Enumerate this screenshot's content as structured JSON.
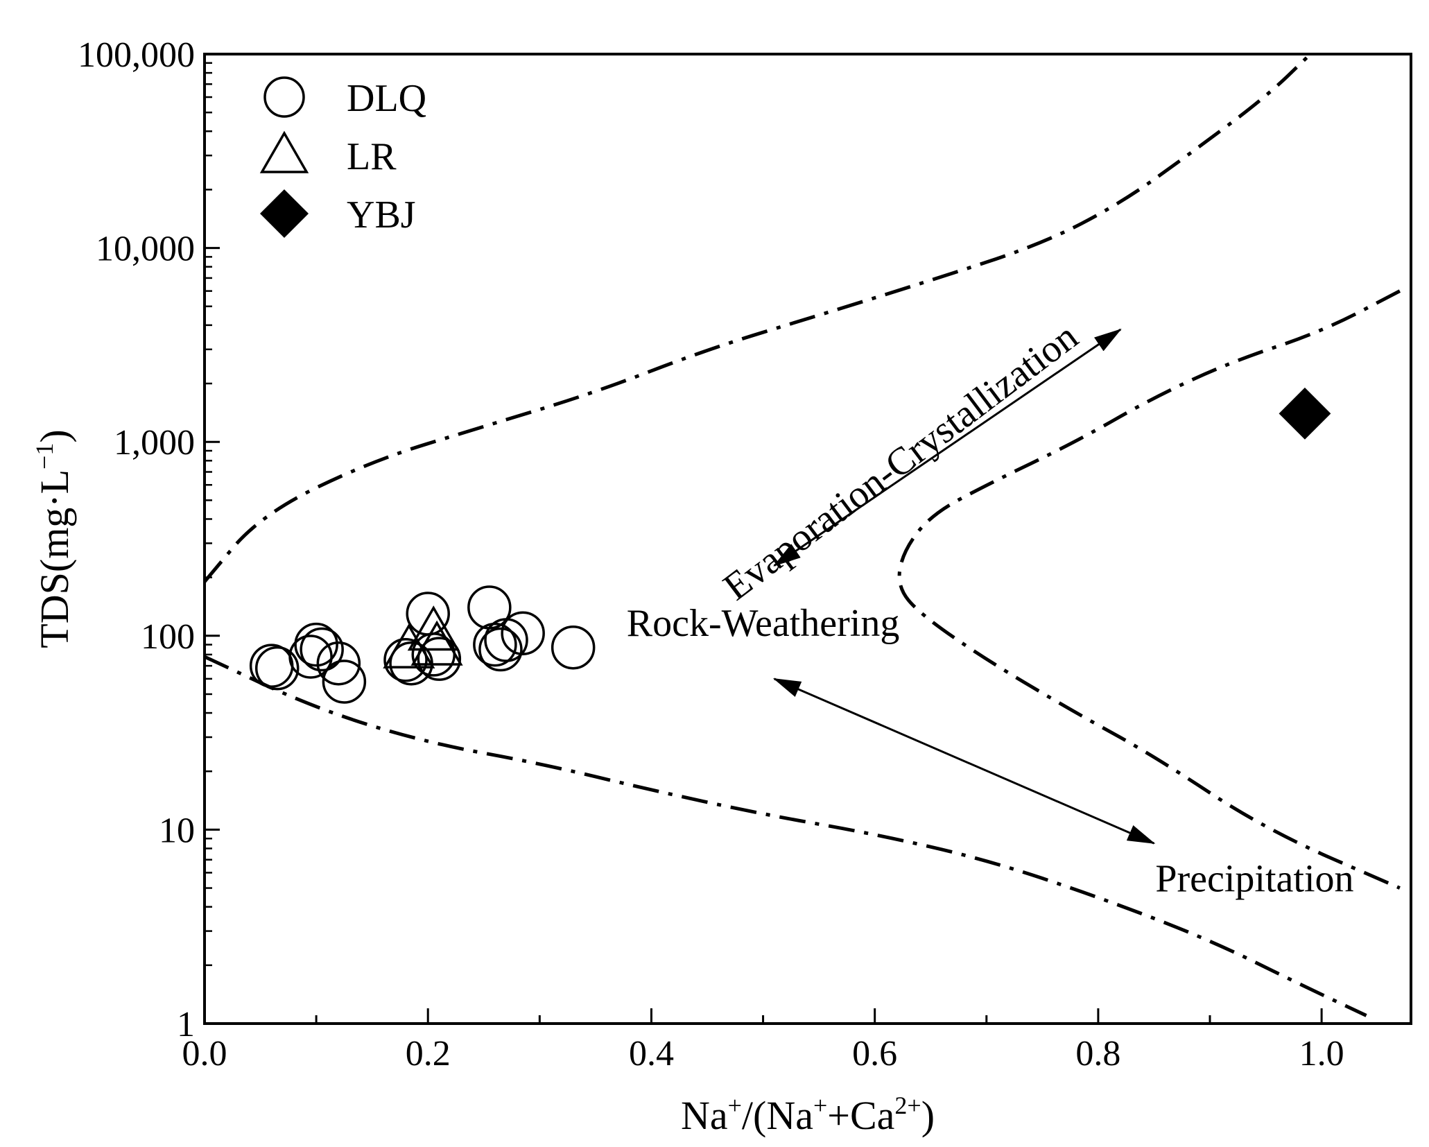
{
  "chart_data": {
    "type": "scatter",
    "title": "",
    "xlabel": {
      "base1": "Na",
      "sup1": "+",
      "mid": "/(Na",
      "sup2": "+",
      "mid2": "+Ca",
      "sup3": "2+",
      "end": ")"
    },
    "ylabel": {
      "base": "TDS(mg·L",
      "sup": "−1",
      "end": ")"
    },
    "xlim": [
      0.0,
      1.08
    ],
    "ylim": [
      1,
      100000
    ],
    "yscale": "log",
    "x_ticks": [
      {
        "value": 0.0,
        "label": "0.0"
      },
      {
        "value": 0.2,
        "label": "0.2"
      },
      {
        "value": 0.4,
        "label": "0.4"
      },
      {
        "value": 0.6,
        "label": "0.6"
      },
      {
        "value": 0.8,
        "label": "0.8"
      },
      {
        "value": 1.0,
        "label": "1.0"
      }
    ],
    "x_minor_ticks": [
      0.1,
      0.3,
      0.5,
      0.7,
      0.9
    ],
    "y_ticks": [
      {
        "value": 1,
        "label": "1"
      },
      {
        "value": 10,
        "label": "10"
      },
      {
        "value": 100,
        "label": "100"
      },
      {
        "value": 1000,
        "label": "1,000"
      },
      {
        "value": 10000,
        "label": "10,000"
      },
      {
        "value": 100000,
        "label": "100,000"
      }
    ],
    "legend": {
      "position": "top-left",
      "entries": [
        {
          "name": "DLQ",
          "marker": "circle-open"
        },
        {
          "name": "LR",
          "marker": "triangle-open"
        },
        {
          "name": "YBJ",
          "marker": "diamond-filled"
        }
      ]
    },
    "series": [
      {
        "name": "DLQ",
        "marker": "circle-open",
        "points": [
          {
            "x": 0.06,
            "y": 70
          },
          {
            "x": 0.065,
            "y": 68
          },
          {
            "x": 0.1,
            "y": 90
          },
          {
            "x": 0.105,
            "y": 85
          },
          {
            "x": 0.095,
            "y": 78
          },
          {
            "x": 0.12,
            "y": 72
          },
          {
            "x": 0.125,
            "y": 58
          },
          {
            "x": 0.18,
            "y": 75
          },
          {
            "x": 0.185,
            "y": 72
          },
          {
            "x": 0.2,
            "y": 130
          },
          {
            "x": 0.205,
            "y": 80
          },
          {
            "x": 0.21,
            "y": 76
          },
          {
            "x": 0.255,
            "y": 140
          },
          {
            "x": 0.26,
            "y": 90
          },
          {
            "x": 0.265,
            "y": 85
          },
          {
            "x": 0.27,
            "y": 95
          },
          {
            "x": 0.285,
            "y": 103
          },
          {
            "x": 0.33,
            "y": 87
          }
        ]
      },
      {
        "name": "LR",
        "marker": "triangle-open",
        "points": [
          {
            "x": 0.183,
            "y": 85
          },
          {
            "x": 0.205,
            "y": 105
          },
          {
            "x": 0.208,
            "y": 88
          }
        ]
      },
      {
        "name": "YBJ",
        "marker": "diamond-filled",
        "points": [
          {
            "x": 0.985,
            "y": 1400
          }
        ]
      }
    ],
    "boundary_lines": [
      {
        "name": "upper-envelope",
        "style": "dash-dot",
        "points": [
          [
            0.0,
            190
          ],
          [
            0.05,
            420
          ],
          [
            0.15,
            800
          ],
          [
            0.25,
            1200
          ],
          [
            0.35,
            1800
          ],
          [
            0.45,
            3000
          ],
          [
            0.55,
            4500
          ],
          [
            0.65,
            6800
          ],
          [
            0.75,
            10500
          ],
          [
            0.82,
            17000
          ],
          [
            0.88,
            30000
          ],
          [
            0.95,
            60000
          ],
          [
            0.99,
            100000
          ]
        ]
      },
      {
        "name": "lower-envelope",
        "style": "dash-dot",
        "points": [
          [
            0.0,
            78
          ],
          [
            0.1,
            42
          ],
          [
            0.2,
            28
          ],
          [
            0.3,
            22
          ],
          [
            0.4,
            16
          ],
          [
            0.5,
            12
          ],
          [
            0.6,
            9.5
          ],
          [
            0.7,
            7
          ],
          [
            0.8,
            4.5
          ],
          [
            0.9,
            2.7
          ],
          [
            0.98,
            1.6
          ],
          [
            1.04,
            1.1
          ]
        ]
      },
      {
        "name": "inner-right-boundary",
        "style": "dash-dot",
        "points": [
          [
            1.07,
            6000
          ],
          [
            1.0,
            3700
          ],
          [
            0.92,
            2600
          ],
          [
            0.85,
            1700
          ],
          [
            0.78,
            1000
          ],
          [
            0.7,
            600
          ],
          [
            0.65,
            420
          ],
          [
            0.625,
            270
          ],
          [
            0.62,
            180
          ],
          [
            0.64,
            130
          ],
          [
            0.7,
            75
          ],
          [
            0.78,
            40
          ],
          [
            0.85,
            24
          ],
          [
            0.95,
            10
          ],
          [
            1.07,
            5
          ]
        ]
      }
    ],
    "annotations": [
      {
        "text": "Evaporation-Crystallization",
        "x": 0.63,
        "y": 700,
        "rotation_deg": -37
      },
      {
        "text": "Rock-Weathering",
        "x": 0.5,
        "y": 100
      },
      {
        "text": "Precipitation",
        "x": 0.94,
        "y": 4.8
      }
    ],
    "arrows": [
      {
        "name": "evaporation-arrow",
        "from": [
          0.51,
          230
        ],
        "to": [
          0.82,
          3800
        ],
        "double_headed": true
      },
      {
        "name": "precipitation-arrow",
        "from": [
          0.51,
          60
        ],
        "to": [
          0.85,
          8.5
        ],
        "double_headed": true
      }
    ]
  }
}
